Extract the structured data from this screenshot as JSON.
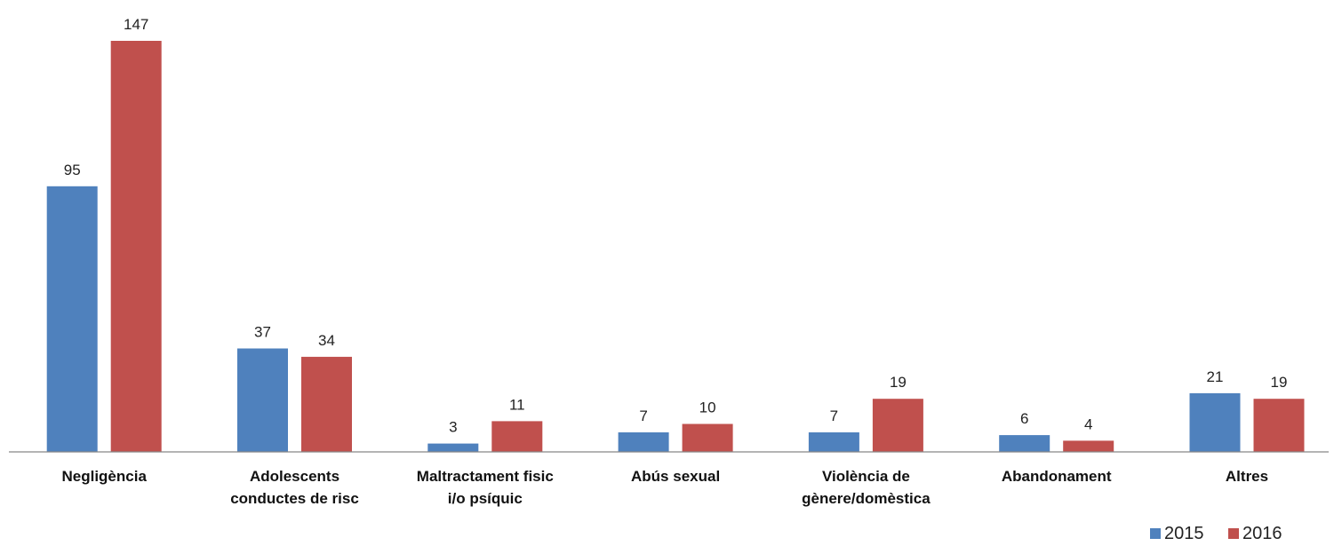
{
  "chart_data": {
    "type": "bar",
    "categories": [
      [
        "Negligència"
      ],
      [
        "Adolescents",
        "conductes de risc"
      ],
      [
        "Maltractament fisic",
        "i/o psíquic"
      ],
      [
        "Abús sexual"
      ],
      [
        "Violència de",
        "gènere/domèstica"
      ],
      [
        "Abandonament"
      ],
      [
        "Altres"
      ]
    ],
    "series": [
      {
        "name": "2015",
        "color": "#4f81bd",
        "values": [
          95,
          37,
          3,
          7,
          7,
          6,
          21
        ]
      },
      {
        "name": "2016",
        "color": "#c0504d",
        "values": [
          147,
          34,
          11,
          10,
          19,
          4,
          19
        ]
      }
    ],
    "ylim": [
      0,
      147
    ],
    "grid": false,
    "legend": "bottom-right",
    "data_labels": true
  }
}
